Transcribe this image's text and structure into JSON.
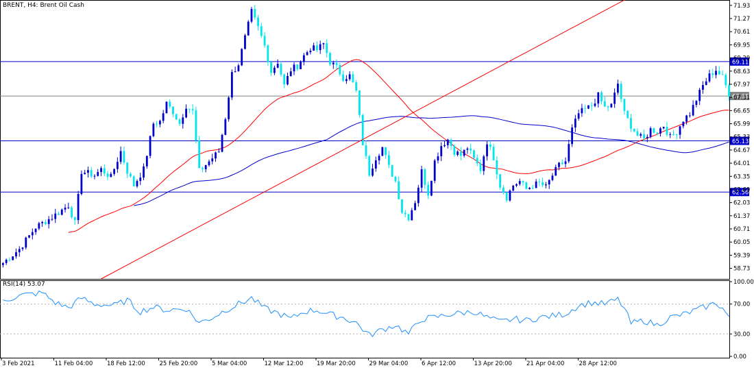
{
  "chart_title": "BRENT, H4:  Brent Oil Cash",
  "colors": {
    "bull": "#0000cd",
    "bear": "#00e5ee",
    "ma_fast": "#ff0000",
    "ma_slow": "#0000cd",
    "trendline": "#ff0000",
    "hline": "#0000cd",
    "hline_gray": "#808080",
    "rsi": "#1e90ff",
    "grid": "#b0b0b0"
  },
  "chart_data": {
    "type": "candlestick",
    "price_axis": {
      "min": 58.2,
      "max": 72.2,
      "ticks": [
        "71.93",
        "71.27",
        "70.61",
        "69.95",
        "69.29",
        "68.63",
        "67.97",
        "67.31",
        "66.65",
        "65.99",
        "65.33",
        "64.67",
        "64.01",
        "63.35",
        "62.69",
        "62.03",
        "61.37",
        "60.71",
        "60.05",
        "59.39",
        "58.73"
      ]
    },
    "time_axis_labels": [
      "3 Feb 2021",
      "11 Feb 04:00",
      "18 Feb 12:00",
      "25 Feb 20:00",
      "5 Mar 04:00",
      "12 Mar 12:00",
      "19 Mar 20:00",
      "29 Mar 04:00",
      "6 Apr 12:00",
      "13 Apr 20:00",
      "21 Apr 04:00",
      "28 Apr 12:00"
    ],
    "horizontal_levels": [
      {
        "value": 69.11,
        "label": "69.11",
        "style": "blue"
      },
      {
        "value": 67.38,
        "label": "67.38",
        "style": "gray"
      },
      {
        "value": 65.13,
        "label": "65.13",
        "style": "blue"
      },
      {
        "value": 62.56,
        "label": "62.56",
        "style": "blue"
      }
    ],
    "trendline": {
      "start": [
        30,
        58.2
      ],
      "end": [
        190,
        72.2
      ]
    },
    "ohlc_anchors": [
      [
        0,
        59.0
      ],
      [
        5,
        59.7
      ],
      [
        10,
        60.8
      ],
      [
        15,
        61.3
      ],
      [
        20,
        61.9
      ],
      [
        22,
        61.0
      ],
      [
        24,
        63.6
      ],
      [
        28,
        63.4
      ],
      [
        30,
        63.7
      ],
      [
        33,
        63.3
      ],
      [
        36,
        64.6
      ],
      [
        38,
        63.6
      ],
      [
        40,
        62.9
      ],
      [
        43,
        63.7
      ],
      [
        46,
        66.0
      ],
      [
        48,
        66.1
      ],
      [
        50,
        67.0
      ],
      [
        52,
        66.6
      ],
      [
        54,
        66.0
      ],
      [
        56,
        66.9
      ],
      [
        58,
        66.6
      ],
      [
        60,
        63.6
      ],
      [
        63,
        64.1
      ],
      [
        66,
        64.6
      ],
      [
        68,
        66.3
      ],
      [
        70,
        68.5
      ],
      [
        72,
        69.0
      ],
      [
        74,
        70.3
      ],
      [
        76,
        71.6
      ],
      [
        78,
        70.8
      ],
      [
        80,
        69.9
      ],
      [
        82,
        68.6
      ],
      [
        84,
        69.1
      ],
      [
        86,
        67.9
      ],
      [
        88,
        68.7
      ],
      [
        90,
        68.9
      ],
      [
        92,
        69.4
      ],
      [
        94,
        69.8
      ],
      [
        96,
        69.7
      ],
      [
        98,
        70.0
      ],
      [
        100,
        69.1
      ],
      [
        102,
        68.8
      ],
      [
        104,
        68.3
      ],
      [
        106,
        68.4
      ],
      [
        108,
        67.6
      ],
      [
        110,
        65.0
      ],
      [
        112,
        63.5
      ],
      [
        114,
        64.3
      ],
      [
        116,
        64.8
      ],
      [
        118,
        63.8
      ],
      [
        120,
        63.1
      ],
      [
        122,
        61.6
      ],
      [
        124,
        61.3
      ],
      [
        126,
        62.1
      ],
      [
        128,
        63.6
      ],
      [
        130,
        62.5
      ],
      [
        132,
        64.1
      ],
      [
        134,
        64.9
      ],
      [
        136,
        65.2
      ],
      [
        138,
        64.6
      ],
      [
        140,
        64.4
      ],
      [
        142,
        64.8
      ],
      [
        144,
        64.2
      ],
      [
        146,
        63.7
      ],
      [
        148,
        65.1
      ],
      [
        150,
        64.3
      ],
      [
        152,
        62.9
      ],
      [
        154,
        62.3
      ],
      [
        156,
        62.9
      ],
      [
        158,
        63.1
      ],
      [
        160,
        62.7
      ],
      [
        162,
        62.9
      ],
      [
        164,
        63.0
      ],
      [
        166,
        62.8
      ],
      [
        168,
        63.4
      ],
      [
        170,
        63.9
      ],
      [
        172,
        64.1
      ],
      [
        174,
        65.7
      ],
      [
        176,
        66.5
      ],
      [
        178,
        66.7
      ],
      [
        180,
        66.9
      ],
      [
        182,
        67.4
      ],
      [
        184,
        66.8
      ],
      [
        186,
        66.9
      ],
      [
        188,
        68.0
      ],
      [
        190,
        66.5
      ],
      [
        192,
        65.9
      ],
      [
        194,
        65.4
      ],
      [
        196,
        65.2
      ],
      [
        198,
        65.7
      ],
      [
        200,
        65.6
      ],
      [
        202,
        65.9
      ],
      [
        204,
        65.3
      ],
      [
        206,
        65.6
      ],
      [
        208,
        66.2
      ],
      [
        210,
        66.5
      ],
      [
        212,
        67.2
      ],
      [
        214,
        67.9
      ],
      [
        216,
        68.4
      ],
      [
        218,
        68.7
      ],
      [
        220,
        68.3
      ],
      [
        222,
        67.5
      ]
    ],
    "rsi": {
      "label": "RSI(14) 53.07",
      "period": 14,
      "current": 53.07,
      "axis_ticks": [
        "100.00",
        "70.00",
        "30.00",
        "0.00"
      ],
      "levels": [
        70,
        30
      ],
      "anchors": [
        [
          0,
          75
        ],
        [
          6,
          82
        ],
        [
          12,
          85
        ],
        [
          16,
          72
        ],
        [
          20,
          65
        ],
        [
          24,
          78
        ],
        [
          28,
          70
        ],
        [
          34,
          68
        ],
        [
          38,
          75
        ],
        [
          42,
          60
        ],
        [
          46,
          66
        ],
        [
          50,
          62
        ],
        [
          56,
          64
        ],
        [
          60,
          45
        ],
        [
          64,
          52
        ],
        [
          68,
          62
        ],
        [
          72,
          70
        ],
        [
          76,
          78
        ],
        [
          80,
          64
        ],
        [
          84,
          58
        ],
        [
          88,
          50
        ],
        [
          92,
          60
        ],
        [
          96,
          62
        ],
        [
          100,
          56
        ],
        [
          104,
          52
        ],
        [
          108,
          45
        ],
        [
          112,
          28
        ],
        [
          116,
          36
        ],
        [
          120,
          42
        ],
        [
          124,
          30
        ],
        [
          128,
          50
        ],
        [
          132,
          52
        ],
        [
          136,
          56
        ],
        [
          140,
          58
        ],
        [
          144,
          60
        ],
        [
          148,
          52
        ],
        [
          152,
          46
        ],
        [
          156,
          50
        ],
        [
          160,
          48
        ],
        [
          164,
          52
        ],
        [
          168,
          54
        ],
        [
          172,
          57
        ],
        [
          176,
          68
        ],
        [
          180,
          72
        ],
        [
          184,
          70
        ],
        [
          188,
          76
        ],
        [
          190,
          64
        ],
        [
          192,
          44
        ],
        [
          196,
          48
        ],
        [
          200,
          42
        ],
        [
          204,
          52
        ],
        [
          208,
          56
        ],
        [
          212,
          62
        ],
        [
          216,
          68
        ],
        [
          218,
          72
        ],
        [
          220,
          64
        ],
        [
          222,
          53
        ]
      ]
    }
  }
}
